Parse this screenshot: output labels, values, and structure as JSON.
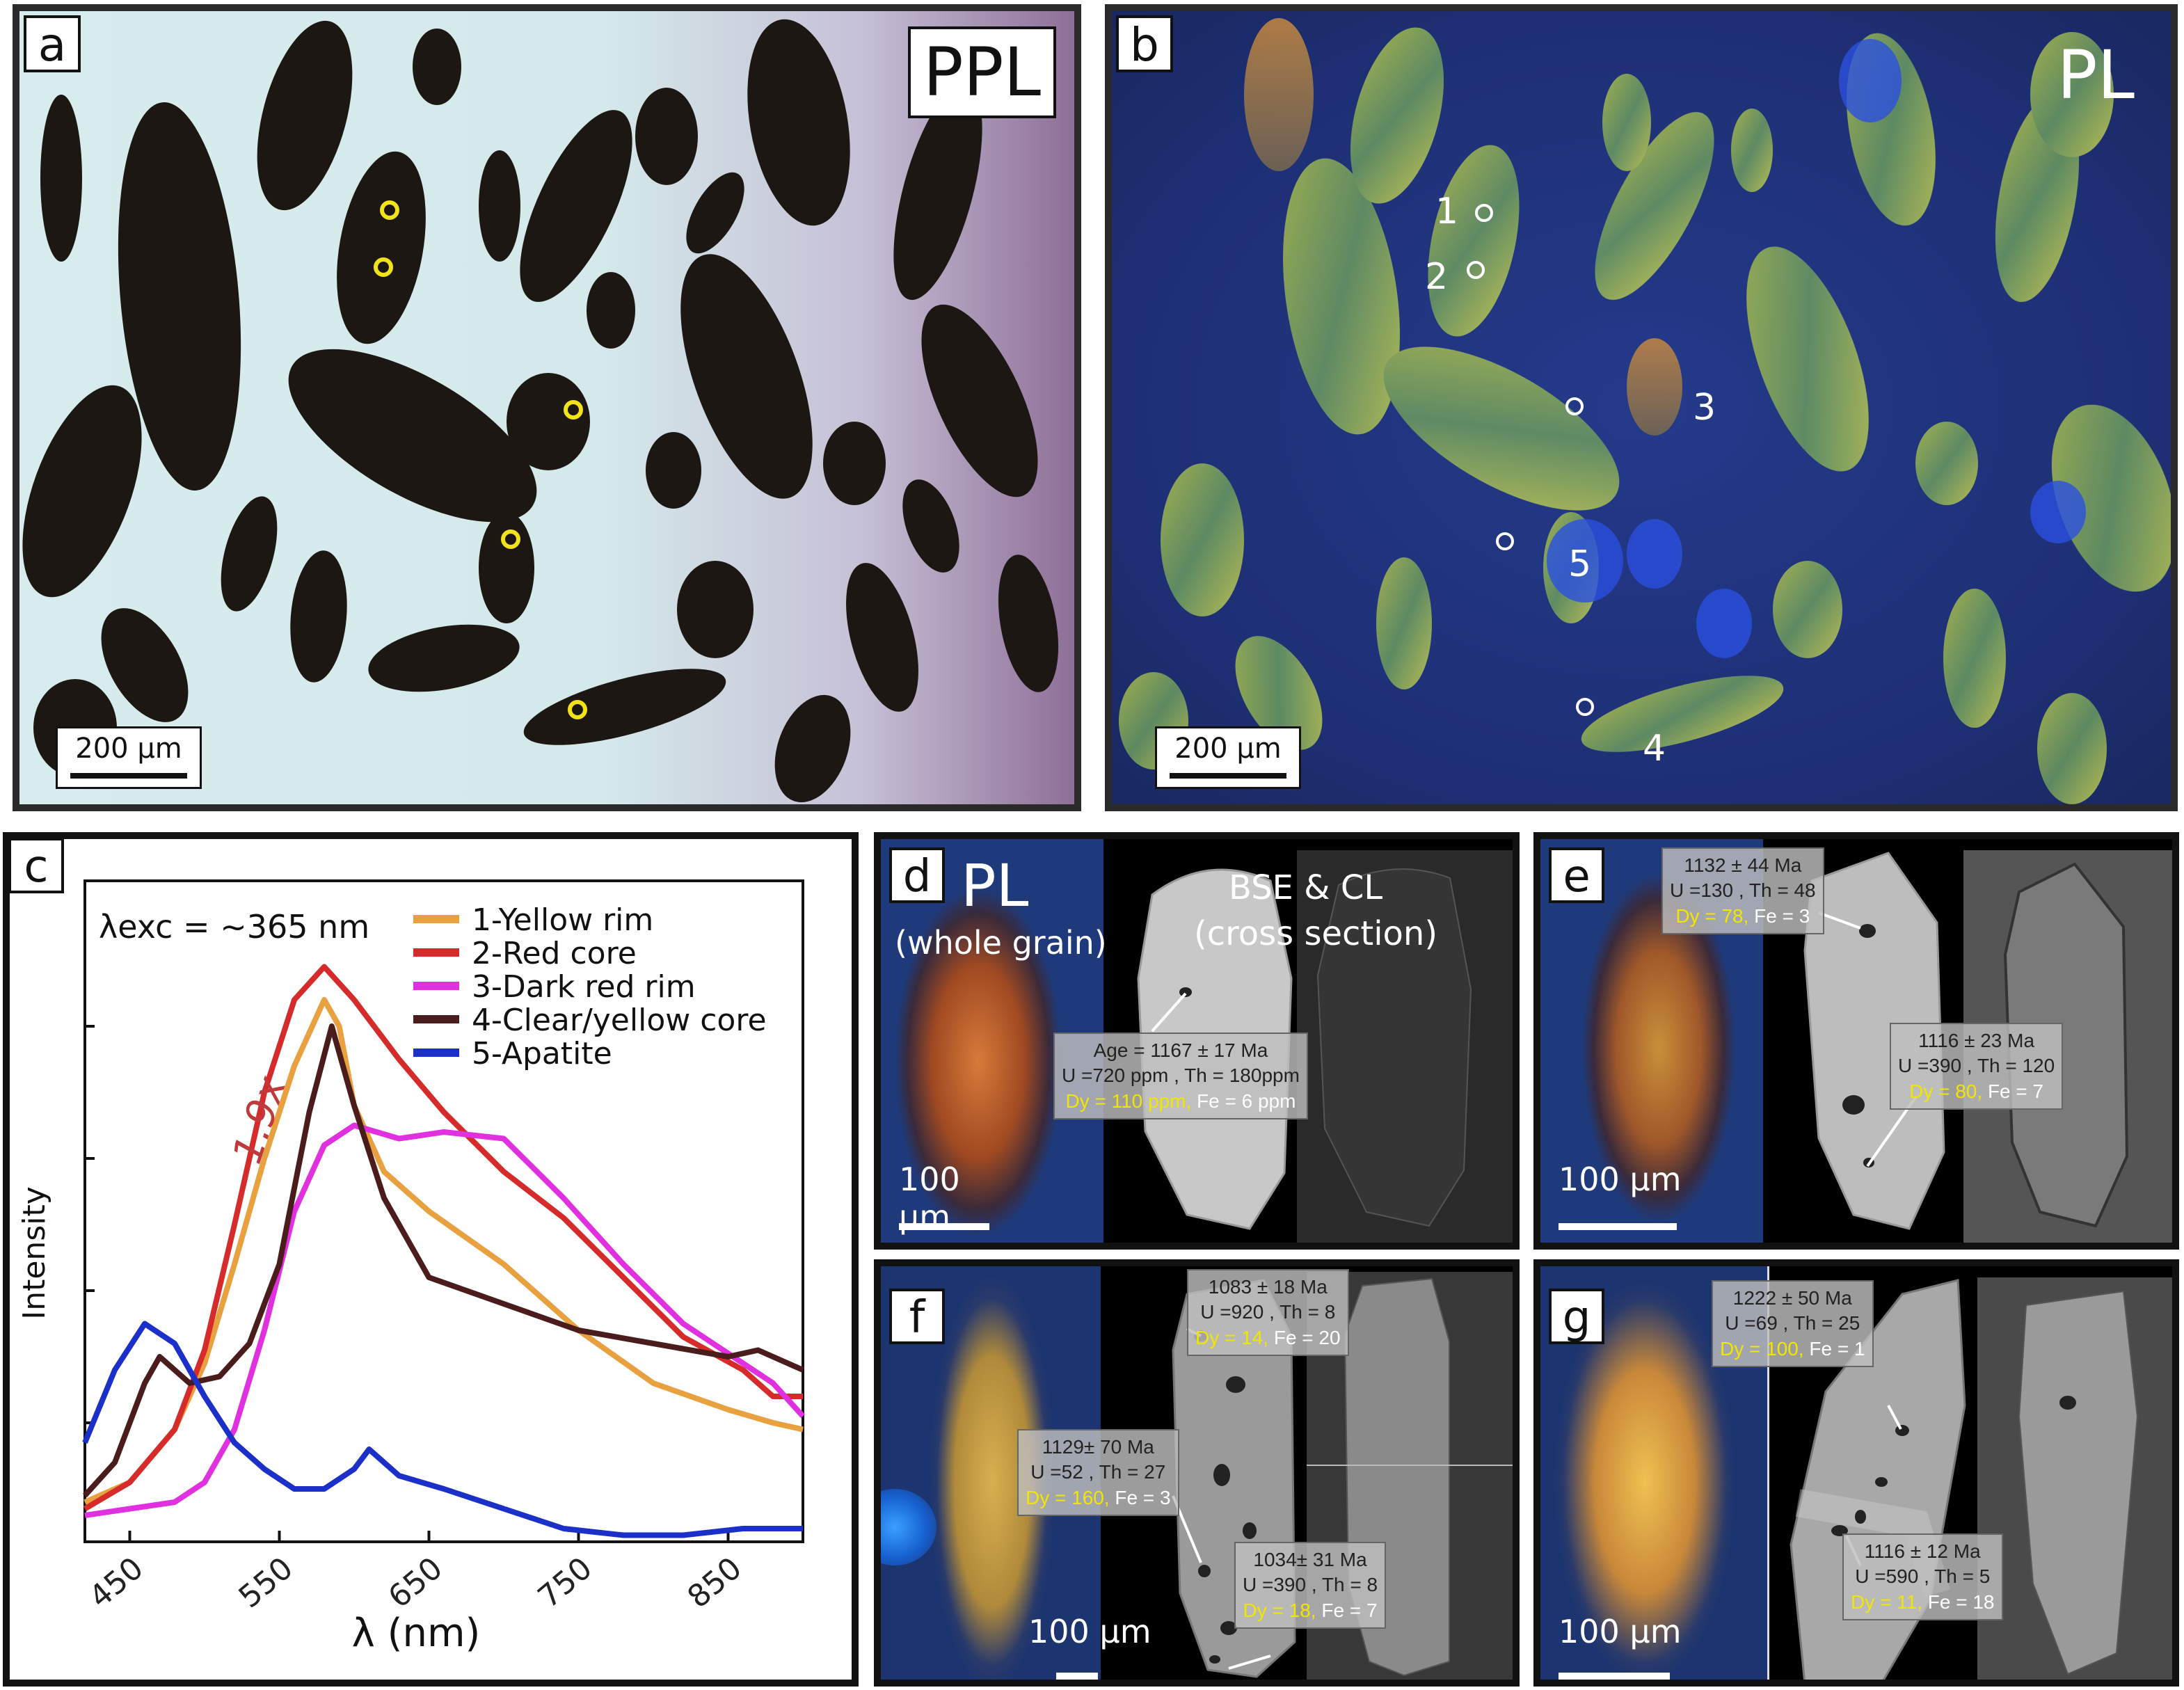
{
  "panel_a": {
    "label": "a",
    "mode": "PPL",
    "scale_bar": "200 µm"
  },
  "panel_b": {
    "label": "b",
    "mode": "PL",
    "scale_bar": "200 µm",
    "points": [
      "1",
      "2",
      "3",
      "4",
      "5"
    ]
  },
  "panel_c": {
    "label": "c",
    "excitation": "λexc = ~365 nm",
    "factor_label": "1.9x",
    "chart_data": {
      "type": "line",
      "xlabel": "λ (nm)",
      "ylabel": "Intensity",
      "xticks": [
        "450",
        "550",
        "650",
        "750",
        "850"
      ],
      "xlim": [
        420,
        900
      ],
      "ylim": [
        0,
        1
      ],
      "legend_position": "top-right",
      "series": [
        {
          "name": "1-Yellow rim",
          "color": "#e9a03f",
          "x": [
            420,
            450,
            480,
            500,
            520,
            540,
            560,
            580,
            590,
            600,
            620,
            650,
            700,
            750,
            800,
            850,
            880,
            900
          ],
          "y": [
            0.06,
            0.09,
            0.17,
            0.27,
            0.42,
            0.58,
            0.72,
            0.82,
            0.78,
            0.66,
            0.56,
            0.5,
            0.42,
            0.32,
            0.24,
            0.2,
            0.18,
            0.17
          ]
        },
        {
          "name": "2-Red core",
          "color": "#d62b2b",
          "x": [
            420,
            450,
            480,
            500,
            520,
            540,
            560,
            580,
            600,
            630,
            660,
            700,
            740,
            780,
            820,
            860,
            880,
            900
          ],
          "y": [
            0.05,
            0.09,
            0.17,
            0.29,
            0.48,
            0.68,
            0.82,
            0.87,
            0.82,
            0.73,
            0.65,
            0.56,
            0.49,
            0.4,
            0.31,
            0.26,
            0.22,
            0.22
          ]
        },
        {
          "name": "3-Dark red rim",
          "color": "#e030e0",
          "x": [
            420,
            450,
            480,
            500,
            520,
            540,
            560,
            580,
            600,
            630,
            660,
            700,
            740,
            780,
            820,
            860,
            880,
            900
          ],
          "y": [
            0.04,
            0.05,
            0.06,
            0.09,
            0.17,
            0.32,
            0.5,
            0.6,
            0.63,
            0.61,
            0.62,
            0.61,
            0.52,
            0.42,
            0.33,
            0.27,
            0.24,
            0.19
          ]
        },
        {
          "name": "4-Clear/yellow core",
          "color": "#4a1c1c",
          "x": [
            420,
            440,
            460,
            470,
            480,
            490,
            510,
            530,
            550,
            570,
            585,
            600,
            620,
            650,
            700,
            750,
            800,
            850,
            870,
            900
          ],
          "y": [
            0.07,
            0.12,
            0.24,
            0.28,
            0.26,
            0.24,
            0.25,
            0.3,
            0.42,
            0.65,
            0.78,
            0.66,
            0.52,
            0.4,
            0.36,
            0.32,
            0.3,
            0.28,
            0.29,
            0.26
          ]
        },
        {
          "name": "5-Apatite",
          "color": "#1b30c9",
          "x": [
            420,
            440,
            460,
            480,
            500,
            520,
            540,
            560,
            580,
            600,
            610,
            630,
            660,
            700,
            740,
            780,
            820,
            860,
            900
          ],
          "y": [
            0.15,
            0.26,
            0.33,
            0.3,
            0.22,
            0.15,
            0.11,
            0.08,
            0.08,
            0.11,
            0.14,
            0.1,
            0.08,
            0.05,
            0.02,
            0.01,
            0.01,
            0.02,
            0.02
          ]
        }
      ]
    }
  },
  "panel_d": {
    "label": "d",
    "title_pl": "PL",
    "title_pl_sub": "(whole grain)",
    "title_bse": "BSE & CL",
    "title_bse_sub": "(cross section)",
    "scale_bar": "100 µm",
    "annotations": [
      {
        "age": "Age = 1167 ± 17 Ma",
        "uth": "U =720 ppm , Th = 180ppm",
        "dy": "Dy = 110 ppm,",
        "fe": "Fe = 6 ppm"
      }
    ]
  },
  "panel_e": {
    "label": "e",
    "scale_bar": "100 µm",
    "annotations": [
      {
        "age": "1132 ± 44 Ma",
        "uth": "U =130 , Th = 48",
        "dy": "Dy = 78,",
        "fe": "Fe = 3"
      },
      {
        "age": "1116 ± 23 Ma",
        "uth": "U =390 , Th = 120",
        "dy": "Dy = 80,",
        "fe": "Fe = 7"
      }
    ]
  },
  "panel_f": {
    "label": "f",
    "scale_bar": "100 µm",
    "annotations": [
      {
        "age": "1083 ± 18 Ma",
        "uth": "U =920 , Th = 8",
        "dy": "Dy = 14,",
        "fe": "Fe = 20"
      },
      {
        "age": "1129± 70 Ma",
        "uth": "U =52 , Th = 27",
        "dy": "Dy = 160,",
        "fe": "Fe = 3"
      },
      {
        "age": "1034± 31 Ma",
        "uth": "U =390 , Th = 8",
        "dy": "Dy = 18,",
        "fe": "Fe = 7"
      }
    ]
  },
  "panel_g": {
    "label": "g",
    "scale_bar": "100 µm",
    "annotations": [
      {
        "age": "1222 ± 50 Ma",
        "uth": "U =69 , Th = 25",
        "dy": "Dy = 100,",
        "fe": "Fe = 1"
      },
      {
        "age": "1116 ± 12 Ma",
        "uth": "U =590 , Th = 5",
        "dy": "Dy = 11,",
        "fe": "Fe = 18"
      }
    ]
  }
}
